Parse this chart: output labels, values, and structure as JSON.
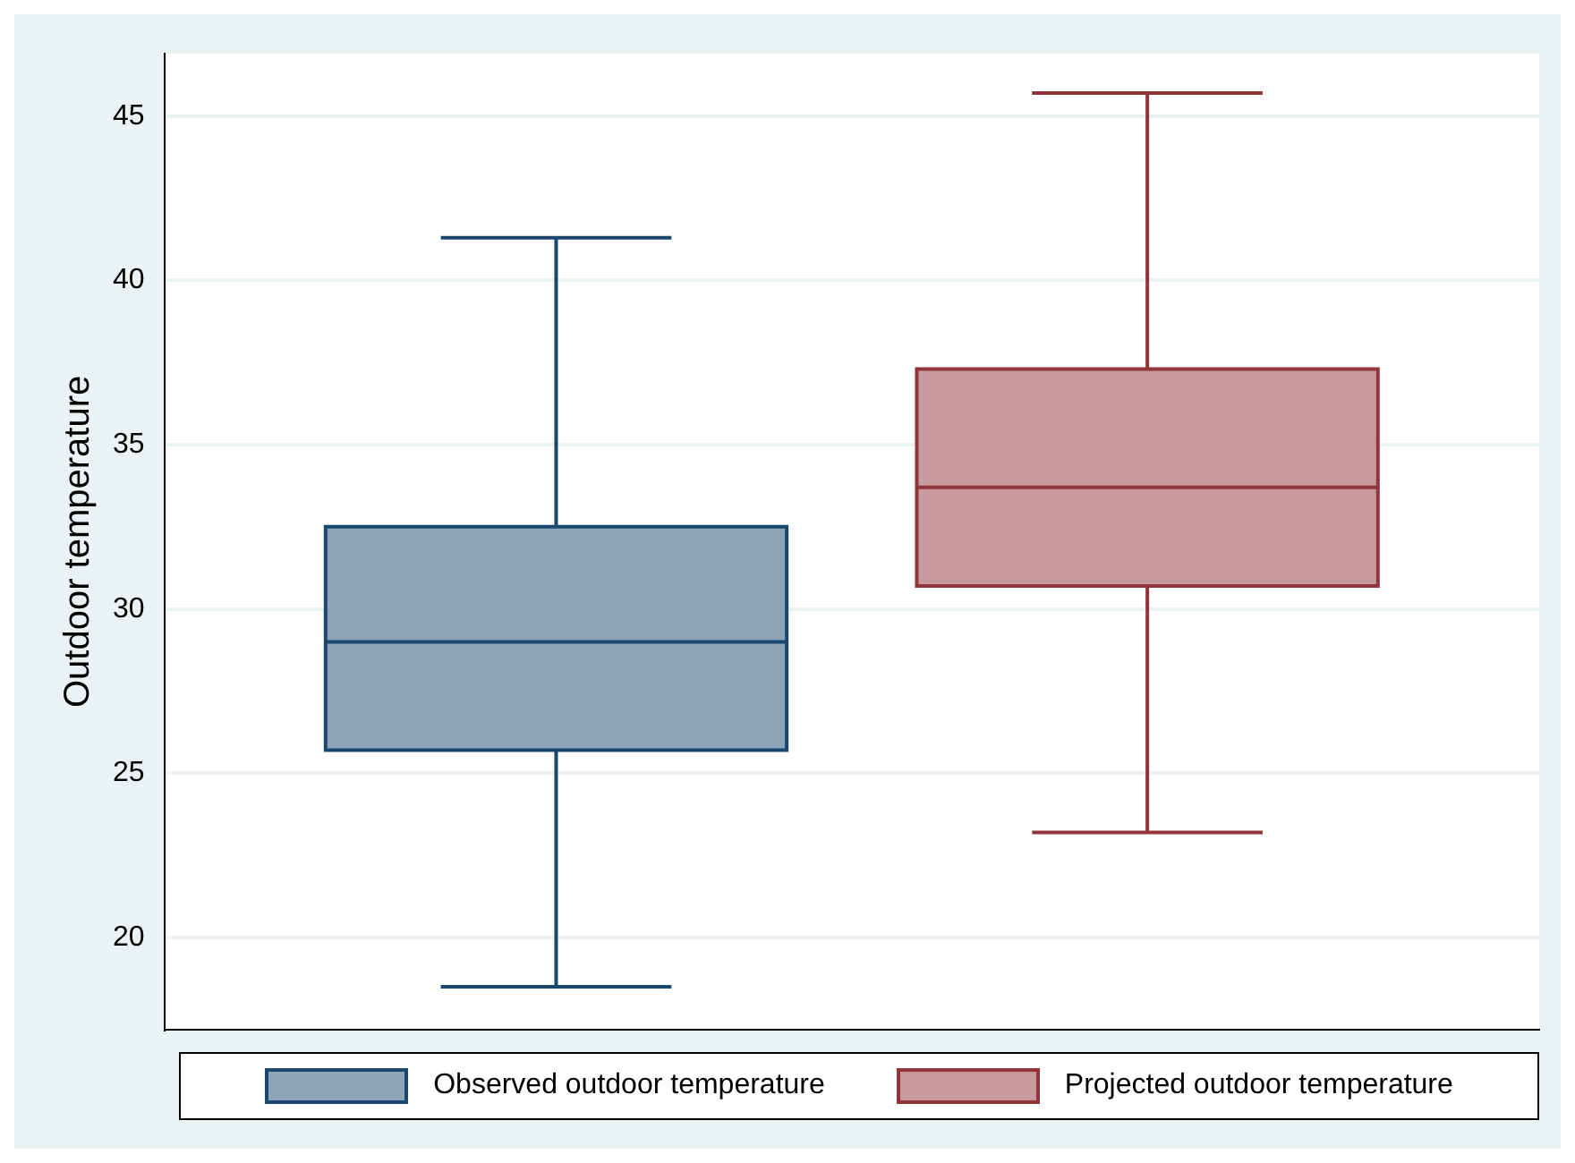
{
  "chart_data": {
    "type": "box",
    "ylabel": "Outdoor temperature",
    "categories": [
      null
    ],
    "series": [
      {
        "name": "Observed outdoor temperature",
        "color": "#8da3b7",
        "boxes": [
          {
            "low": 18.5,
            "q1": 25.7,
            "median": 29.0,
            "q3": 32.5,
            "high": 41.3
          }
        ]
      },
      {
        "name": "Projected outdoor temperature",
        "color": "#c89a9d",
        "boxes": [
          {
            "low": 23.2,
            "q1": 30.7,
            "median": 33.7,
            "q3": 37.3,
            "high": 45.7
          }
        ]
      }
    ],
    "ylim": [
      17.2,
      46.9
    ],
    "yticks": [
      20,
      25,
      30,
      35,
      40,
      45
    ],
    "grid": "y",
    "legend": "bottom",
    "tick_labels": "y"
  }
}
